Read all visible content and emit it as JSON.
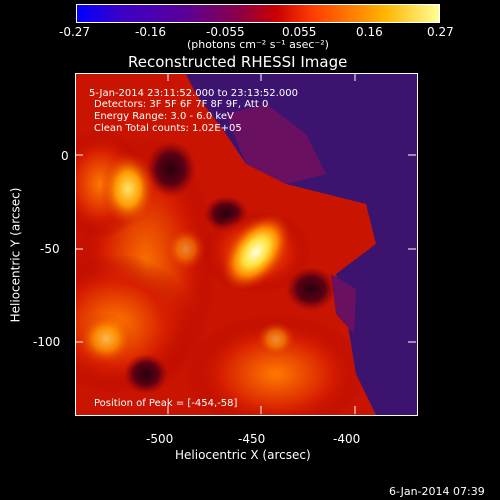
{
  "colorbar": {
    "min": -0.27,
    "max": 0.27,
    "ticks": [
      "-0.27",
      "-0.16",
      "-0.055",
      "0.055",
      "0.16",
      "0.27"
    ],
    "units_label": "(photons cm⁻² s⁻¹ asec⁻²)"
  },
  "title": "Reconstructed RHESSI Image",
  "info": {
    "time_range": "5-Jan-2014 23:11:52.000 to 23:13:52.000",
    "detectors": "Detectors: 3F 5F 6F 7F 8F 9F, Att 0",
    "energy_range": "Energy Range: 3.0 - 6.0 keV",
    "clean_counts": "Clean    Total counts: 1.02E+05",
    "peak_position": "Position of Peak = [-454,-58]"
  },
  "axes": {
    "xlabel": "Heliocentric X (arcsec)",
    "ylabel": "Heliocentric Y (arcsec)",
    "xticks": [
      "-500",
      "-450",
      "-400"
    ],
    "yticks": [
      "0",
      "-50",
      "-100"
    ]
  },
  "timestamp": "6-Jan-2014 07:39",
  "colors": {
    "background": "#000000",
    "map_low": "#3b1470",
    "map_high": "#ffffe0"
  }
}
